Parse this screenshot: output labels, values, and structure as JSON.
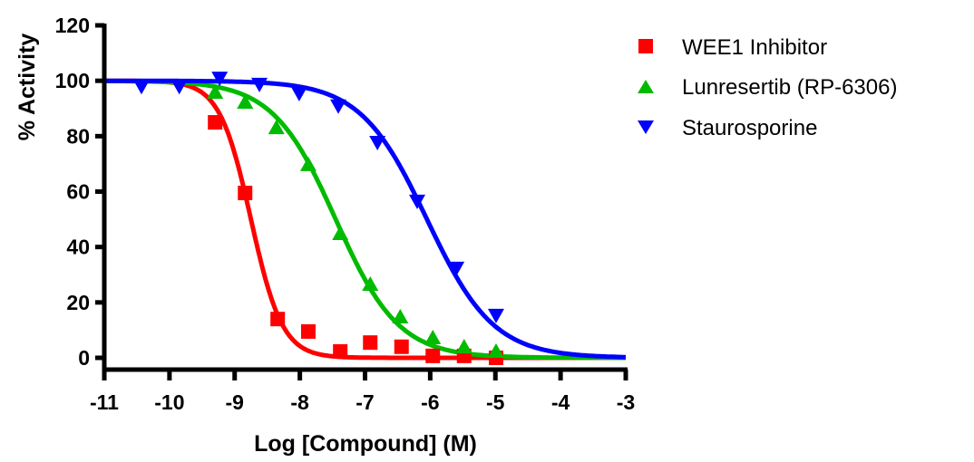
{
  "chart_data": {
    "type": "line",
    "title": "",
    "xlabel": "Log [Compound] (M)",
    "ylabel": "% Activity",
    "xlim": [
      -11,
      -3
    ],
    "ylim": [
      0,
      120
    ],
    "xticks": [
      -11,
      -10,
      -9,
      -8,
      -7,
      -6,
      -5,
      -4,
      -3
    ],
    "yticks": [
      0,
      20,
      40,
      60,
      80,
      100,
      120
    ],
    "xtick_labels": [
      "-11",
      "-10",
      "-9",
      "-8",
      "-7",
      "-6",
      "-5",
      "-4",
      "-3"
    ],
    "ytick_labels": [
      "0",
      "20",
      "40",
      "60",
      "80",
      "100",
      "120"
    ],
    "grid": false,
    "legend_position": "top-right-outside",
    "series": [
      {
        "name": "WEE1 Inhibitor",
        "color": "#ff0000",
        "marker": "square",
        "x": [
          -9.3,
          -8.84,
          -8.34,
          -7.87,
          -7.38,
          -6.92,
          -6.44,
          -5.96,
          -5.48,
          -4.99
        ],
        "y": [
          85,
          59.5,
          14,
          9.5,
          2.3,
          5.5,
          4,
          0.7,
          0.7,
          0
        ],
        "fit": {
          "top": 100,
          "bottom": 0,
          "logIC50": -8.75,
          "hill": -1.8
        }
      },
      {
        "name": "Lunresertib (RP-6306)",
        "color": "#00bb00",
        "marker": "triangle-up",
        "x": [
          -9.3,
          -8.84,
          -8.36,
          -7.87,
          -7.38,
          -6.92,
          -6.46,
          -5.96,
          -5.48,
          -4.99
        ],
        "y": [
          95.8,
          92.2,
          83,
          69.7,
          44.8,
          26.5,
          14.7,
          7.2,
          3.9,
          2.3
        ],
        "fit": {
          "top": 100,
          "bottom": 0,
          "logIC50": -7.45,
          "hill": -0.9
        }
      },
      {
        "name": "Staurosporine",
        "color": "#0000ff",
        "marker": "triangle-down",
        "x": [
          -10.43,
          -9.85,
          -9.23,
          -8.62,
          -8.01,
          -7.41,
          -6.81,
          -6.2,
          -5.6,
          -4.99
        ],
        "y": [
          98,
          98,
          101,
          98.8,
          95.5,
          91,
          77.8,
          56.6,
          32.4,
          15.4
        ],
        "fit": {
          "top": 100,
          "bottom": 0,
          "logIC50": -6.05,
          "hill": -0.85
        }
      }
    ]
  }
}
